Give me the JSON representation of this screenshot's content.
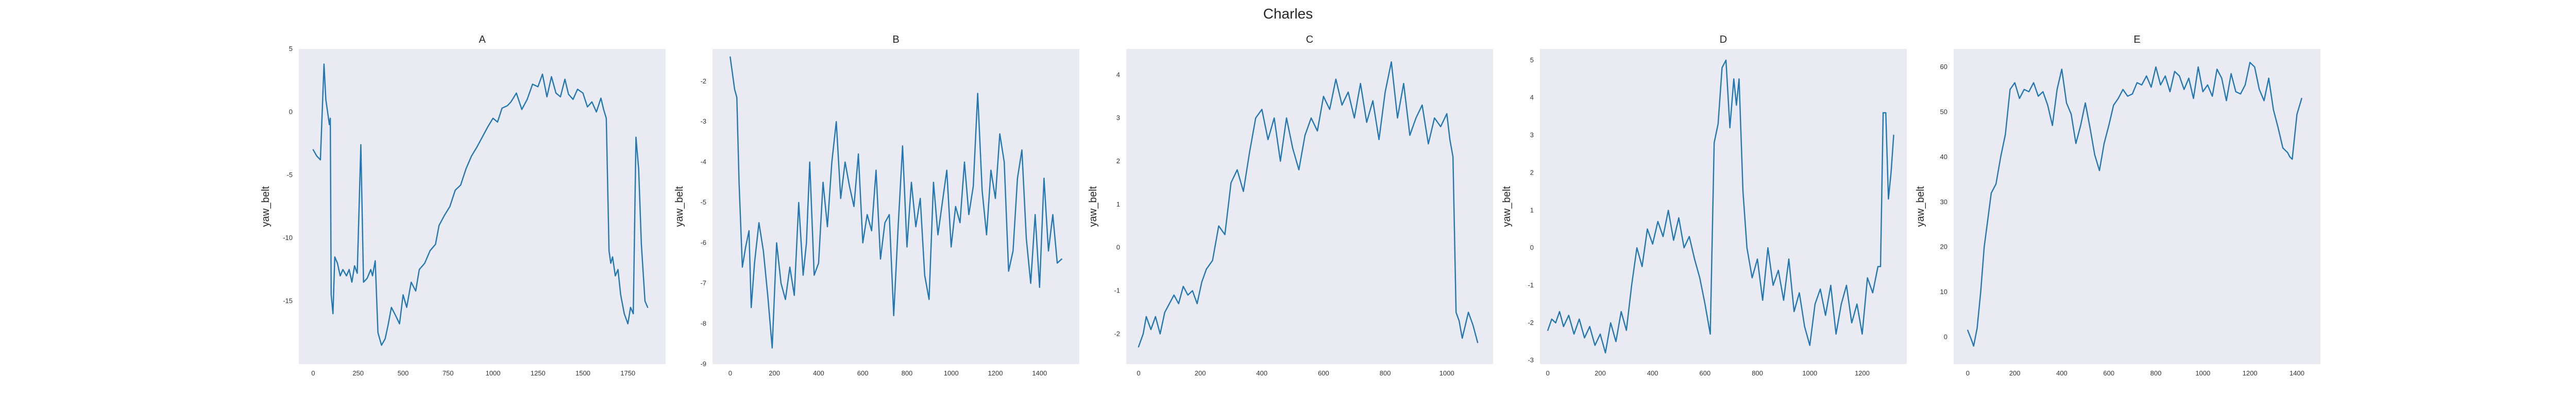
{
  "title": "Charles",
  "colors": {
    "line": "#1f77b4",
    "plot_bg": "#eaeaf2"
  },
  "chart_data": [
    {
      "type": "line",
      "title": "A",
      "ylabel": "yaw_belt",
      "xlabel": "",
      "grid": false,
      "xlim": [
        -80,
        1960
      ],
      "ylim": [
        -20,
        5
      ],
      "xticks": [
        0,
        250,
        500,
        750,
        1000,
        1250,
        1500,
        1750
      ],
      "yticks": [
        5,
        0,
        -5,
        -10,
        -15
      ],
      "series": [
        {
          "x": [
            0,
            20,
            40,
            60,
            70,
            90,
            95,
            100,
            110,
            120,
            135,
            150,
            165,
            185,
            200,
            215,
            230,
            245,
            265,
            280,
            300,
            320,
            330,
            345,
            360,
            380,
            400,
            415,
            435,
            460,
            480,
            500,
            520,
            545,
            570,
            590,
            620,
            650,
            680,
            700,
            730,
            760,
            790,
            820,
            850,
            880,
            910,
            940,
            970,
            1000,
            1025,
            1050,
            1080,
            1100,
            1130,
            1160,
            1190,
            1220,
            1250,
            1275,
            1300,
            1325,
            1350,
            1375,
            1400,
            1420,
            1445,
            1470,
            1500,
            1525,
            1550,
            1575,
            1600,
            1615,
            1630,
            1645,
            1655,
            1665,
            1680,
            1695,
            1710,
            1730,
            1750,
            1765,
            1780,
            1795,
            1810,
            1825,
            1845,
            1860
          ],
          "y": [
            -3,
            -3.5,
            -3.8,
            3.8,
            1.0,
            -1.0,
            -0.5,
            -14.5,
            -16.0,
            -11.5,
            -12.0,
            -13.0,
            -12.5,
            -13.0,
            -12.5,
            -13.5,
            -12.2,
            -12.8,
            -2.6,
            -13.5,
            -13.2,
            -12.5,
            -13.0,
            -11.8,
            -17.5,
            -18.5,
            -18.0,
            -17.0,
            -15.5,
            -16.2,
            -16.8,
            -14.5,
            -15.5,
            -13.5,
            -14.2,
            -12.5,
            -12.0,
            -11.0,
            -10.5,
            -9.0,
            -8.2,
            -7.5,
            -6.2,
            -5.8,
            -4.5,
            -3.5,
            -2.8,
            -2.0,
            -1.2,
            -0.5,
            -0.8,
            0.3,
            0.5,
            0.8,
            1.5,
            0.2,
            1.0,
            2.2,
            2.0,
            3.0,
            1.2,
            2.8,
            1.5,
            1.2,
            2.6,
            1.4,
            1.0,
            1.8,
            1.5,
            0.4,
            0.8,
            0.0,
            1.1,
            0.2,
            -0.5,
            -11.0,
            -12.0,
            -11.5,
            -13.0,
            -12.5,
            -14.5,
            -16.0,
            -16.8,
            -15.5,
            -16.0,
            -2.0,
            -4.5,
            -10.5,
            -15.0,
            -15.5
          ]
        }
      ]
    },
    {
      "type": "line",
      "title": "B",
      "ylabel": "yaw_belt",
      "xlabel": "",
      "grid": false,
      "xlim": [
        -80,
        1580
      ],
      "ylim": [
        -9,
        -1.2
      ],
      "xticks": [
        0,
        200,
        400,
        600,
        800,
        1000,
        1200,
        1400
      ],
      "yticks": [
        -2,
        -3,
        -4,
        -5,
        -6,
        -7,
        -8,
        -9
      ],
      "series": [
        {
          "x": [
            0,
            20,
            30,
            40,
            55,
            70,
            85,
            95,
            110,
            130,
            150,
            170,
            190,
            210,
            230,
            250,
            270,
            290,
            310,
            330,
            345,
            360,
            380,
            400,
            420,
            440,
            460,
            480,
            500,
            520,
            540,
            560,
            580,
            600,
            620,
            640,
            660,
            680,
            700,
            720,
            740,
            760,
            780,
            800,
            820,
            840,
            860,
            880,
            900,
            920,
            940,
            960,
            980,
            1000,
            1020,
            1040,
            1060,
            1080,
            1100,
            1120,
            1140,
            1160,
            1180,
            1200,
            1220,
            1240,
            1260,
            1280,
            1300,
            1320,
            1340,
            1360,
            1380,
            1400,
            1420,
            1440,
            1460,
            1480,
            1500
          ],
          "y": [
            -1.4,
            -2.2,
            -2.4,
            -4.5,
            -6.6,
            -6.1,
            -5.7,
            -7.6,
            -6.5,
            -5.5,
            -6.2,
            -7.3,
            -8.6,
            -6.0,
            -7.0,
            -7.4,
            -6.6,
            -7.3,
            -5.0,
            -6.8,
            -6.0,
            -4.0,
            -6.8,
            -6.5,
            -4.5,
            -5.6,
            -4.0,
            -3.0,
            -4.9,
            -4.0,
            -4.6,
            -5.1,
            -3.8,
            -6.0,
            -5.3,
            -5.7,
            -4.2,
            -6.4,
            -5.5,
            -5.3,
            -7.8,
            -5.6,
            -3.6,
            -6.1,
            -4.5,
            -5.6,
            -4.9,
            -6.8,
            -7.4,
            -4.5,
            -5.8,
            -5.0,
            -4.2,
            -6.1,
            -5.1,
            -5.5,
            -4.0,
            -5.3,
            -4.6,
            -2.3,
            -4.7,
            -5.8,
            -4.2,
            -4.9,
            -3.3,
            -4.0,
            -6.7,
            -6.2,
            -4.4,
            -3.7,
            -5.9,
            -7.0,
            -5.3,
            -7.1,
            -4.4,
            -6.2,
            -5.3,
            -6.5,
            -6.4
          ]
        }
      ]
    },
    {
      "type": "line",
      "title": "C",
      "ylabel": "yaw_belt",
      "xlabel": "",
      "grid": false,
      "xlim": [
        -40,
        1150
      ],
      "ylim": [
        -2.7,
        4.6
      ],
      "xticks": [
        0,
        200,
        400,
        600,
        800,
        1000
      ],
      "yticks": [
        4,
        3,
        2,
        1,
        0,
        -1,
        -2
      ],
      "series": [
        {
          "x": [
            0,
            15,
            25,
            40,
            55,
            70,
            85,
            100,
            115,
            130,
            145,
            160,
            175,
            190,
            205,
            220,
            240,
            260,
            280,
            300,
            320,
            340,
            360,
            380,
            400,
            420,
            440,
            460,
            480,
            500,
            520,
            540,
            560,
            580,
            600,
            620,
            640,
            660,
            680,
            700,
            720,
            740,
            760,
            780,
            800,
            820,
            840,
            860,
            880,
            900,
            920,
            940,
            960,
            980,
            1000,
            1010,
            1020,
            1030,
            1040,
            1050,
            1060,
            1070,
            1085,
            1100
          ],
          "y": [
            -2.3,
            -2.0,
            -1.6,
            -1.9,
            -1.6,
            -2.0,
            -1.5,
            -1.3,
            -1.1,
            -1.3,
            -0.9,
            -1.1,
            -1.0,
            -1.3,
            -0.8,
            -0.5,
            -0.3,
            0.5,
            0.3,
            1.5,
            1.8,
            1.3,
            2.2,
            3.0,
            3.2,
            2.5,
            3.0,
            2.0,
            3.0,
            2.3,
            1.8,
            2.6,
            3.0,
            2.7,
            3.5,
            3.2,
            3.9,
            3.3,
            3.6,
            3.0,
            3.8,
            2.9,
            3.4,
            2.5,
            3.6,
            4.3,
            3.0,
            3.8,
            2.6,
            3.0,
            3.3,
            2.4,
            3.0,
            2.8,
            3.1,
            2.5,
            2.1,
            -1.5,
            -1.7,
            -2.1,
            -1.8,
            -1.5,
            -1.8,
            -2.2
          ]
        }
      ]
    },
    {
      "type": "line",
      "title": "D",
      "ylabel": "yaw_belt",
      "xlabel": "",
      "grid": false,
      "xlim": [
        -30,
        1370
      ],
      "ylim": [
        -3.1,
        5.3
      ],
      "xticks": [
        0,
        200,
        400,
        600,
        800,
        1000,
        1200
      ],
      "yticks": [
        5,
        4,
        3,
        2,
        1,
        0,
        -1,
        -2,
        -3
      ],
      "series": [
        {
          "x": [
            0,
            15,
            30,
            45,
            60,
            80,
            100,
            120,
            140,
            160,
            180,
            200,
            220,
            240,
            260,
            280,
            300,
            320,
            340,
            360,
            380,
            400,
            420,
            440,
            460,
            480,
            500,
            520,
            540,
            560,
            580,
            600,
            620,
            635,
            650,
            665,
            680,
            695,
            710,
            720,
            730,
            745,
            760,
            780,
            800,
            820,
            840,
            860,
            880,
            900,
            920,
            940,
            960,
            980,
            1000,
            1020,
            1040,
            1060,
            1080,
            1100,
            1120,
            1140,
            1160,
            1180,
            1200,
            1220,
            1240,
            1260,
            1270,
            1280,
            1290,
            1300,
            1310,
            1320
          ],
          "y": [
            -2.2,
            -1.9,
            -2.0,
            -1.7,
            -2.1,
            -1.8,
            -2.3,
            -1.9,
            -2.4,
            -2.1,
            -2.6,
            -2.3,
            -2.8,
            -2.0,
            -2.5,
            -1.7,
            -2.2,
            -1.0,
            0.0,
            -0.5,
            0.5,
            0.1,
            0.7,
            0.3,
            1.0,
            0.2,
            0.8,
            0.0,
            0.3,
            -0.3,
            -0.8,
            -1.5,
            -2.3,
            2.8,
            3.3,
            4.8,
            5.0,
            3.2,
            4.5,
            3.8,
            4.5,
            1.5,
            0.0,
            -0.8,
            -0.3,
            -1.4,
            0.0,
            -1.0,
            -0.6,
            -1.4,
            -0.3,
            -1.7,
            -1.2,
            -2.1,
            -2.6,
            -1.5,
            -1.1,
            -1.8,
            -1.0,
            -2.3,
            -1.5,
            -1.0,
            -2.0,
            -1.5,
            -2.3,
            -0.8,
            -1.2,
            -0.5,
            -0.5,
            3.6,
            3.6,
            1.3,
            2.0,
            3.0
          ]
        }
      ]
    },
    {
      "type": "line",
      "title": "E",
      "ylabel": "yaw_belt",
      "xlabel": "",
      "grid": false,
      "xlim": [
        -60,
        1500
      ],
      "ylim": [
        -6,
        64
      ],
      "xticks": [
        0,
        200,
        400,
        600,
        800,
        1000,
        1200,
        1400
      ],
      "yticks": [
        60,
        50,
        40,
        30,
        20,
        10,
        0
      ],
      "series": [
        {
          "x": [
            0,
            15,
            25,
            40,
            55,
            70,
            85,
            100,
            120,
            140,
            160,
            180,
            200,
            220,
            240,
            260,
            280,
            300,
            320,
            340,
            360,
            380,
            400,
            420,
            440,
            460,
            480,
            500,
            520,
            540,
            560,
            580,
            600,
            620,
            640,
            660,
            680,
            700,
            720,
            740,
            760,
            780,
            800,
            820,
            840,
            860,
            880,
            900,
            920,
            940,
            960,
            980,
            1000,
            1020,
            1040,
            1060,
            1080,
            1100,
            1120,
            1140,
            1160,
            1180,
            1200,
            1220,
            1240,
            1260,
            1280,
            1300,
            1320,
            1340,
            1360,
            1370,
            1380,
            1400,
            1420
          ],
          "y": [
            1.5,
            -0.5,
            -2.0,
            2.0,
            10.0,
            20.0,
            26.0,
            32.0,
            34.0,
            40.0,
            45.0,
            55.0,
            56.5,
            53.0,
            55.0,
            54.5,
            56.5,
            53.5,
            54.5,
            51.5,
            47.0,
            55.0,
            59.5,
            52.0,
            49.5,
            43.0,
            47.0,
            52.0,
            46.5,
            40.5,
            37.0,
            43.0,
            47.0,
            51.5,
            53.0,
            55.0,
            53.5,
            54.0,
            56.5,
            56.0,
            58.0,
            55.5,
            60.0,
            56.0,
            58.0,
            54.5,
            59.0,
            58.0,
            55.0,
            57.5,
            53.0,
            60.0,
            54.5,
            56.0,
            53.5,
            59.5,
            57.5,
            52.5,
            58.5,
            54.5,
            54.0,
            56.0,
            61.0,
            60.0,
            55.0,
            52.5,
            57.5,
            50.5,
            46.5,
            42.0,
            41.0,
            40.0,
            39.5,
            49.5,
            53.0
          ]
        }
      ]
    }
  ]
}
